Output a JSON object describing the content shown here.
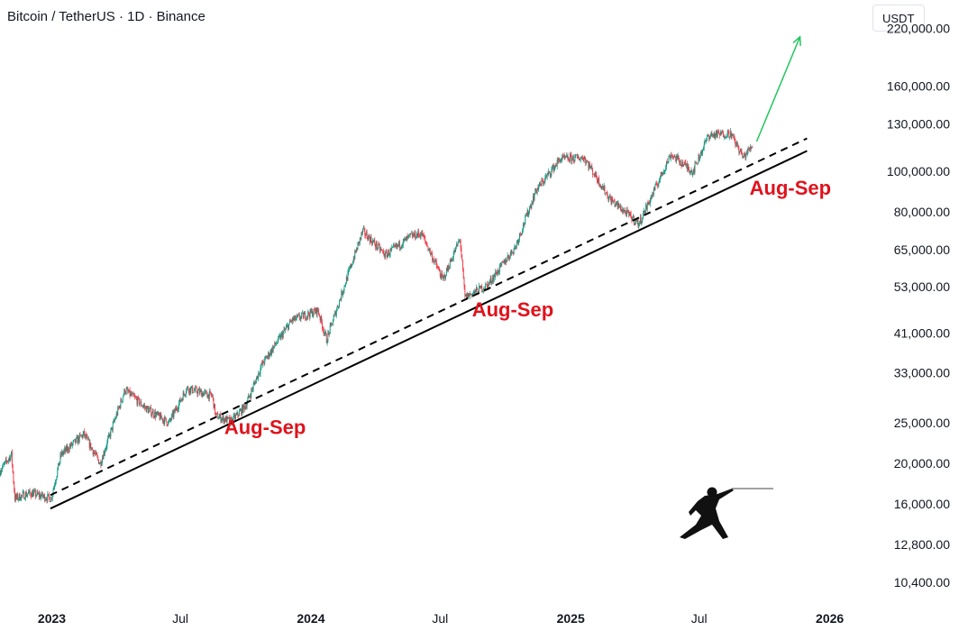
{
  "header": {
    "symbol_title": "Bitcoin / TetherUS · 1D · Binance",
    "currency": "USDT"
  },
  "colors": {
    "up": "#089981",
    "down": "#f23645",
    "annotation": "#e0131c",
    "arrow": "#22c55e",
    "trendline": "#000000"
  },
  "icons": [
    "fencer-silhouette-icon"
  ],
  "chart_data": {
    "type": "candlestick",
    "interval": "1D",
    "log_scale": true,
    "ylim": [
      9500,
      240000
    ],
    "xlim": [
      "2022-10-20",
      "2026-02-20"
    ],
    "y_ticks": [
      {
        "value": 220000,
        "label": "220,000.00"
      },
      {
        "value": 160000,
        "label": "160,000.00"
      },
      {
        "value": 130000,
        "label": "130,000.00"
      },
      {
        "value": 100000,
        "label": "100,000.00"
      },
      {
        "value": 80000,
        "label": "80,000.00"
      },
      {
        "value": 65000,
        "label": "65,000.00"
      },
      {
        "value": 53000,
        "label": "53,000.00"
      },
      {
        "value": 41000,
        "label": "41,000.00"
      },
      {
        "value": 33000,
        "label": "33,000.00"
      },
      {
        "value": 25000,
        "label": "25,000.00"
      },
      {
        "value": 20000,
        "label": "20,000.00"
      },
      {
        "value": 16000,
        "label": "16,000.00"
      },
      {
        "value": 12800,
        "label": "12,800.00"
      },
      {
        "value": 10400,
        "label": "10,400.00"
      }
    ],
    "x_ticks": [
      {
        "date": "2023-01-01",
        "label": "2023",
        "bold": true
      },
      {
        "date": "2023-07-01",
        "label": "Jul",
        "bold": false
      },
      {
        "date": "2024-01-01",
        "label": "2024",
        "bold": true
      },
      {
        "date": "2024-07-01",
        "label": "Jul",
        "bold": false
      },
      {
        "date": "2025-01-01",
        "label": "2025",
        "bold": true
      },
      {
        "date": "2025-07-01",
        "label": "Jul",
        "bold": false
      },
      {
        "date": "2026-01-01",
        "label": "2026",
        "bold": true
      }
    ],
    "price_path": [
      [
        "2022-10-20",
        19200
      ],
      [
        "2022-11-05",
        21000
      ],
      [
        "2022-11-10",
        16500
      ],
      [
        "2022-12-01",
        17000
      ],
      [
        "2022-12-31",
        16500
      ],
      [
        "2023-01-14",
        21000
      ],
      [
        "2023-02-15",
        23500
      ],
      [
        "2023-03-10",
        20000
      ],
      [
        "2023-04-14",
        30000
      ],
      [
        "2023-05-15",
        27000
      ],
      [
        "2023-06-15",
        25000
      ],
      [
        "2023-07-10",
        30300
      ],
      [
        "2023-08-15",
        29000
      ],
      [
        "2023-08-20",
        26000
      ],
      [
        "2023-09-11",
        25200
      ],
      [
        "2023-10-01",
        27500
      ],
      [
        "2023-10-24",
        34500
      ],
      [
        "2023-12-05",
        44000
      ],
      [
        "2024-01-11",
        46500
      ],
      [
        "2024-01-23",
        39500
      ],
      [
        "2024-02-15",
        52000
      ],
      [
        "2024-03-14",
        72000
      ],
      [
        "2024-04-15",
        63000
      ],
      [
        "2024-05-21",
        70000
      ],
      [
        "2024-06-05",
        71000
      ],
      [
        "2024-07-05",
        55000
      ],
      [
        "2024-07-29",
        69000
      ],
      [
        "2024-08-05",
        50000
      ],
      [
        "2024-09-06",
        53500
      ],
      [
        "2024-10-15",
        66000
      ],
      [
        "2024-11-13",
        90000
      ],
      [
        "2024-12-17",
        107000
      ],
      [
        "2025-01-20",
        108000
      ],
      [
        "2025-02-25",
        86000
      ],
      [
        "2025-04-07",
        75000
      ],
      [
        "2025-05-05",
        95000
      ],
      [
        "2025-05-22",
        110000
      ],
      [
        "2025-06-22",
        100000
      ],
      [
        "2025-07-14",
        122000
      ],
      [
        "2025-08-14",
        123500
      ],
      [
        "2025-09-01",
        108000
      ],
      [
        "2025-09-14",
        115500
      ]
    ],
    "trendlines": [
      {
        "style": "solid",
        "from": [
          "2022-12-30",
          15600
        ],
        "to": [
          "2025-11-30",
          112000
        ]
      },
      {
        "style": "dashed",
        "from": [
          "2022-12-30",
          16800
        ],
        "to": [
          "2025-11-30",
          120000
        ]
      }
    ],
    "arrow": {
      "from": [
        "2025-09-20",
        118000
      ],
      "to": [
        "2025-11-20",
        210000
      ]
    },
    "annotations": [
      {
        "text": "Aug-Sep",
        "date": "2023-09-01",
        "price": 23500
      },
      {
        "text": "Aug-Sep",
        "date": "2024-08-15",
        "price": 45000
      },
      {
        "text": "Aug-Sep",
        "date": "2025-09-10",
        "price": 88000
      }
    ]
  }
}
